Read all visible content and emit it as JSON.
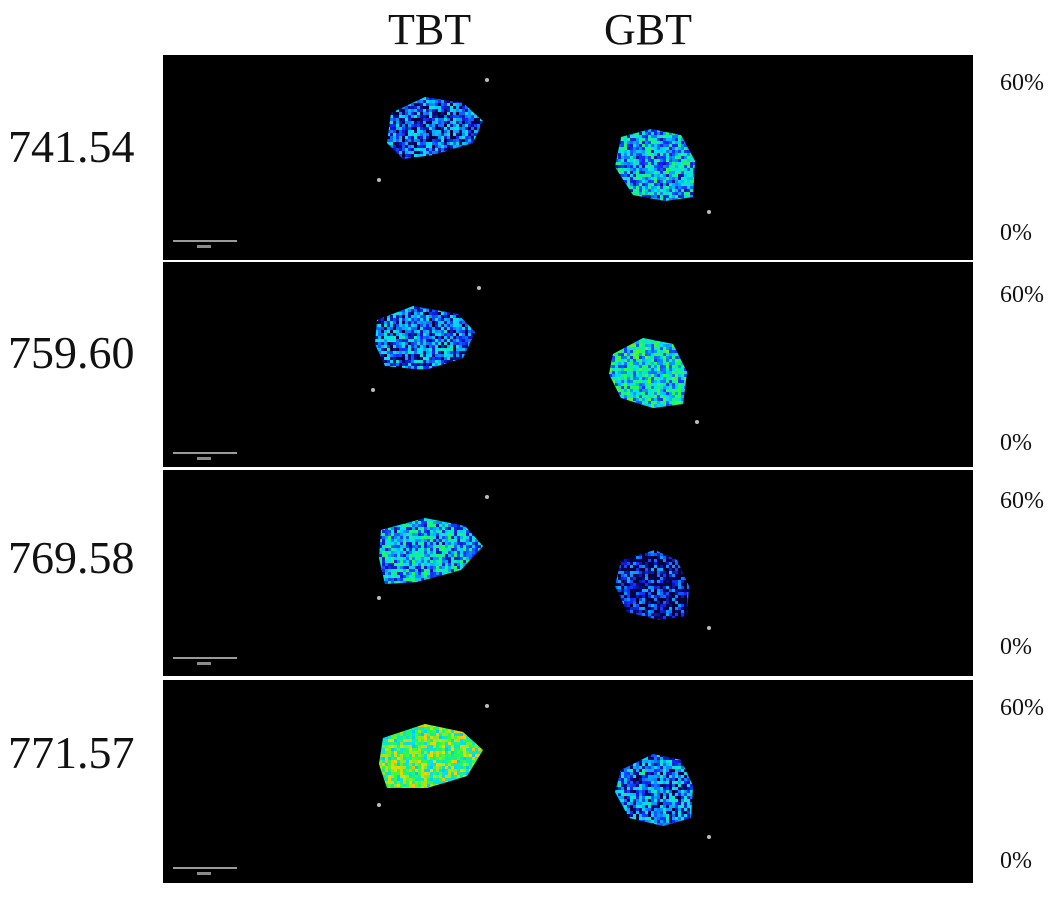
{
  "columns": [
    "TBT",
    "GBT"
  ],
  "colorbar": {
    "max_label": "60%",
    "min_label": "0%"
  },
  "rows": [
    {
      "label": "741.54",
      "tbt_intensity": 0.18,
      "gbt_intensity": 0.3
    },
    {
      "label": "759.60",
      "tbt_intensity": 0.2,
      "gbt_intensity": 0.38
    },
    {
      "label": "769.58",
      "tbt_intensity": 0.3,
      "gbt_intensity": 0.08
    },
    {
      "label": "771.57",
      "tbt_intensity": 0.55,
      "gbt_intensity": 0.22
    }
  ],
  "colors": {
    "background": "#000000",
    "frame": "#ffffff"
  }
}
